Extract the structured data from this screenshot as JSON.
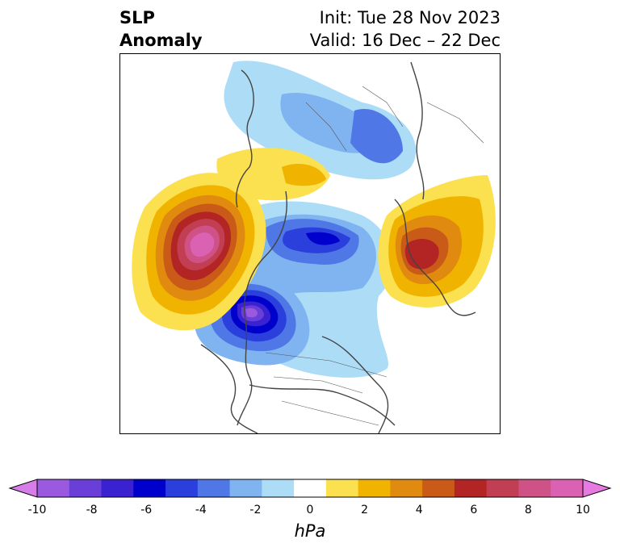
{
  "title": {
    "variable_line1": "SLP",
    "variable_line2": "Anomaly",
    "init": "Init: Tue 28 Nov 2023",
    "valid": "Valid: 16 Dec – 22 Dec"
  },
  "colorbar": {
    "unit": "hPa",
    "tick_labels": [
      "-10",
      "-8",
      "-6",
      "-4",
      "-2",
      "0",
      "2",
      "4",
      "6",
      "8",
      "10"
    ],
    "colors": [
      "#d67de8",
      "#9b59e0",
      "#6a3fd8",
      "#3a22d0",
      "#0000cc",
      "#2a3fdc",
      "#4f78e6",
      "#7fb4f0",
      "#addcf7",
      "#ffffff",
      "#fbe04f",
      "#f0b400",
      "#e08a10",
      "#c95a18",
      "#b32424",
      "#c23e52",
      "#cf5286",
      "#db62b2",
      "#e77ae0"
    ],
    "extend": "both"
  },
  "anomalies": [
    {
      "name": "positive-anomaly-pacific",
      "level": 10
    },
    {
      "name": "negative-anomaly-canada-west",
      "level": -10
    },
    {
      "name": "negative-anomaly-arctic",
      "level": -6
    },
    {
      "name": "positive-anomaly-scandinavia",
      "level": 6
    },
    {
      "name": "positive-anomaly-siberia",
      "level": 2
    },
    {
      "name": "negative-anomaly-east-asia",
      "level": -4
    }
  ]
}
